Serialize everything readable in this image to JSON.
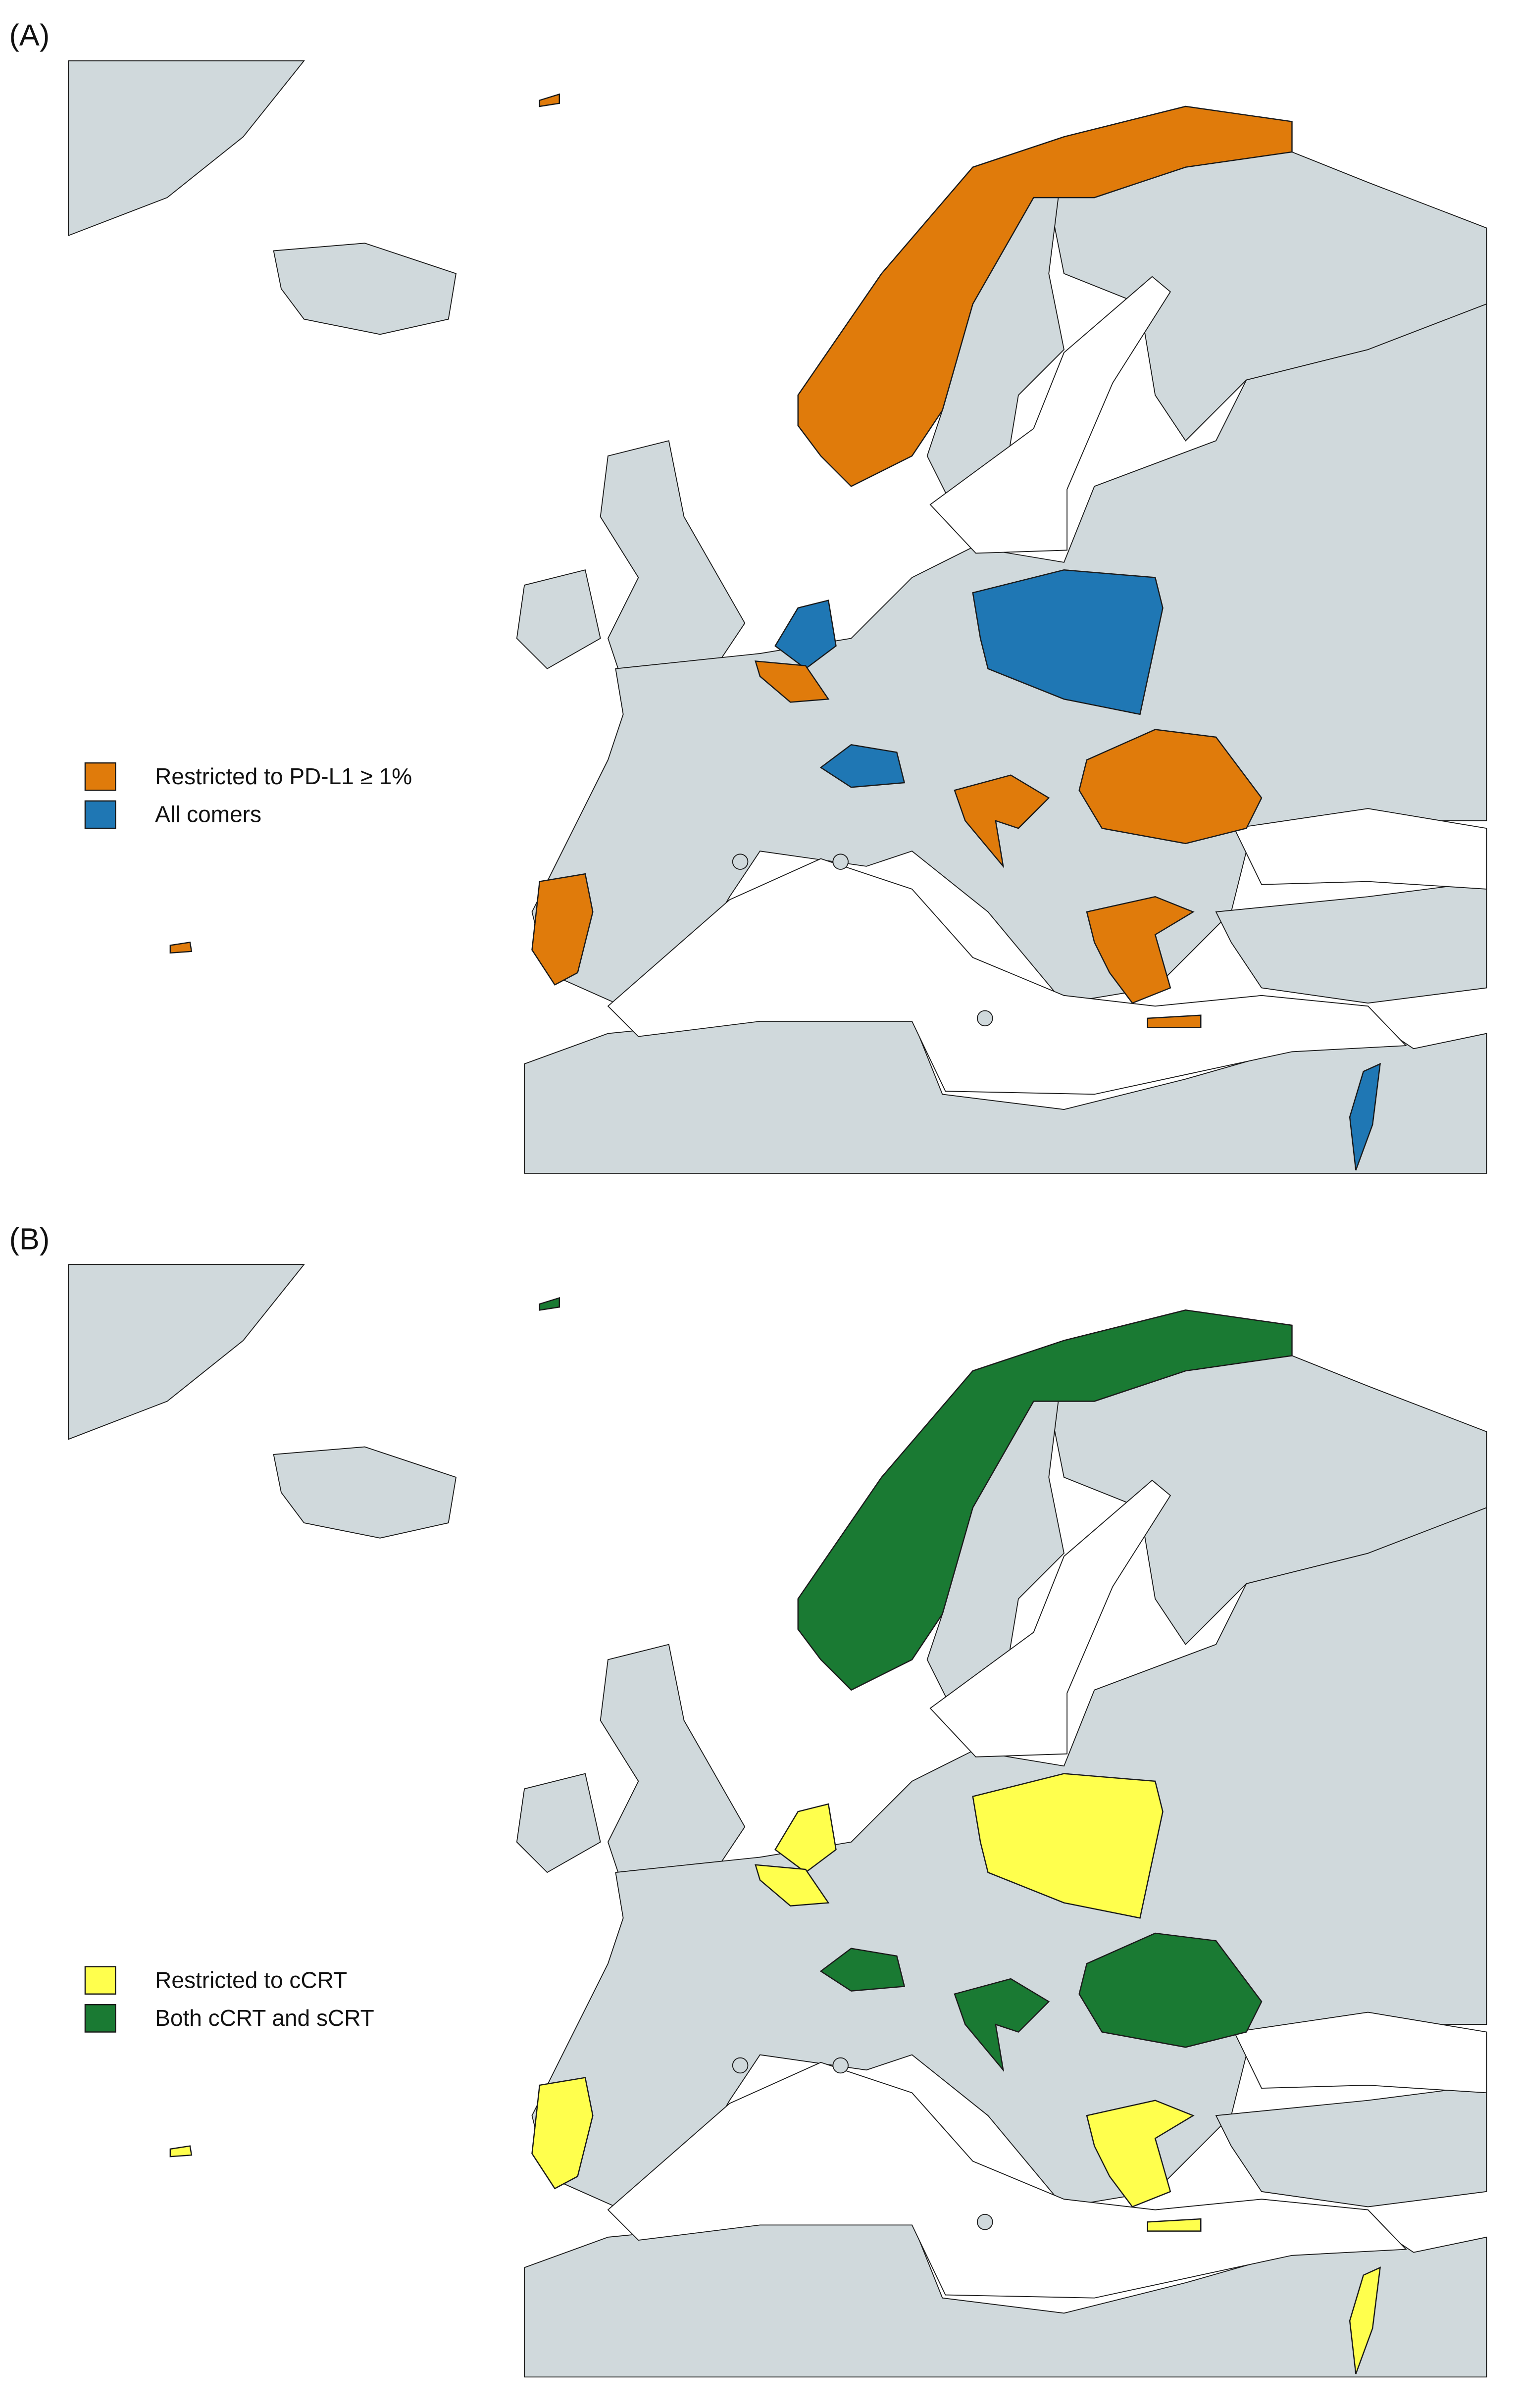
{
  "panels": [
    {
      "label": "(A)",
      "legend": [
        {
          "label": "Restricted to PD-L1 ≥ 1%",
          "color": "#e07b0b"
        },
        {
          "label": "All comers",
          "color": "#1f77b4"
        }
      ]
    },
    {
      "label": "(B)",
      "legend": [
        {
          "label": "Restricted to cCRT",
          "color": "#ffff4d"
        },
        {
          "label": "Both cCRT and sCRT",
          "color": "#1a7a33"
        }
      ]
    }
  ]
}
